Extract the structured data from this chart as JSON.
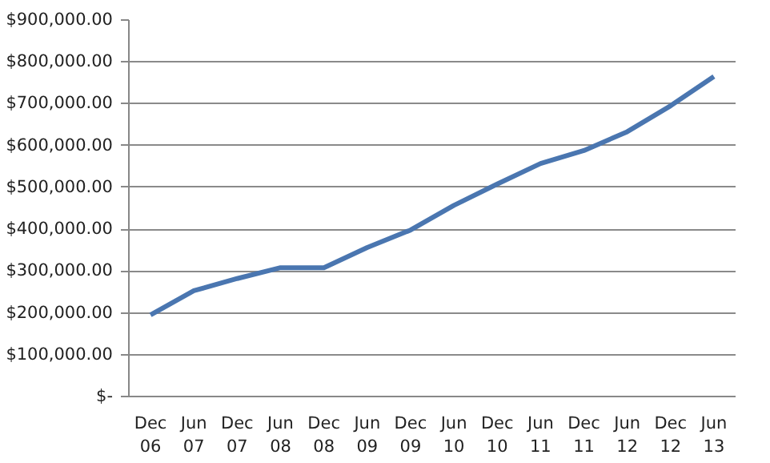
{
  "chart_data": {
    "type": "line",
    "categories": [
      "Dec 06",
      "Jun 07",
      "Dec 07",
      "Jun 08",
      "Dec 08",
      "Jun 09",
      "Dec 09",
      "Jun 10",
      "Dec 10",
      "Jun 11",
      "Dec 11",
      "Jun 12",
      "Dec 12",
      "Jun 13"
    ],
    "series": [
      {
        "color": "#4a76b0",
        "values": [
          195000,
          253000,
          282000,
          308000,
          308000,
          356000,
          398000,
          457000,
          508000,
          557000,
          588000,
          633000,
          695000,
          765000
        ]
      }
    ],
    "ylim": [
      0,
      900000
    ],
    "yticks": [
      {
        "value": 0,
        "label": "$-"
      },
      {
        "value": 100000,
        "label": "$100,000.00"
      },
      {
        "value": 200000,
        "label": "$200,000.00"
      },
      {
        "value": 300000,
        "label": "$300,000.00"
      },
      {
        "value": 400000,
        "label": "$400,000.00"
      },
      {
        "value": 500000,
        "label": "$500,000.00"
      },
      {
        "value": 600000,
        "label": "$600,000.00"
      },
      {
        "value": 700000,
        "label": "$700,000.00"
      },
      {
        "value": 800000,
        "label": "$800,000.00"
      },
      {
        "value": 900000,
        "label": "$900,000.00"
      }
    ],
    "grid": "y",
    "marker": "none",
    "line_style": "solid"
  }
}
